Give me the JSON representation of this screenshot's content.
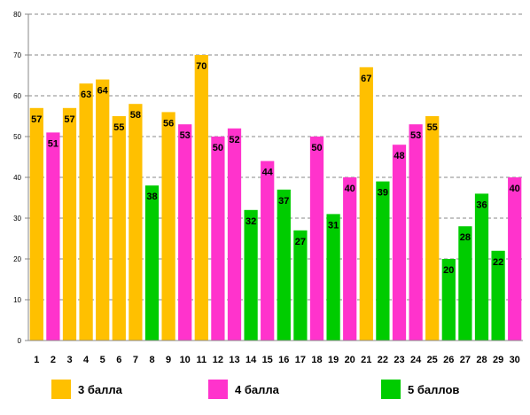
{
  "chart_data": {
    "type": "bar",
    "categories": [
      "1",
      "2",
      "3",
      "4",
      "5",
      "6",
      "7",
      "8",
      "9",
      "10",
      "11",
      "12",
      "13",
      "14",
      "15",
      "16",
      "17",
      "18",
      "19",
      "20",
      "21",
      "22",
      "23",
      "24",
      "25",
      "26",
      "27",
      "28",
      "29",
      "30"
    ],
    "values": [
      57,
      51,
      57,
      63,
      64,
      55,
      58,
      38,
      56,
      53,
      70,
      50,
      52,
      32,
      44,
      37,
      27,
      50,
      31,
      40,
      67,
      39,
      48,
      53,
      55,
      20,
      28,
      36,
      22,
      40
    ],
    "groups": [
      "3 балла",
      "4 балла",
      "3 балла",
      "3 балла",
      "3 балла",
      "3 балла",
      "3 балла",
      "5 баллов",
      "3 балла",
      "4 балла",
      "3 балла",
      "4 балла",
      "4 балла",
      "5 баллов",
      "4 балла",
      "5 баллов",
      "5 баллов",
      "4 балла",
      "5 баллов",
      "4 балла",
      "3 балла",
      "5 баллов",
      "4 балла",
      "4 балла",
      "3 балла",
      "5 баллов",
      "5 баллов",
      "5 баллов",
      "5 баллов",
      "4 балла"
    ],
    "ylim": [
      0,
      80
    ],
    "yticks": [
      0,
      10,
      20,
      30,
      40,
      50,
      60,
      70,
      80
    ],
    "grid": true,
    "legend_position": "bottom",
    "legend": [
      {
        "name": "3 балла",
        "color": "#FFC000"
      },
      {
        "name": "4 балла",
        "color": "#FF33CC"
      },
      {
        "name": "5 баллов",
        "color": "#00CC00"
      }
    ]
  }
}
